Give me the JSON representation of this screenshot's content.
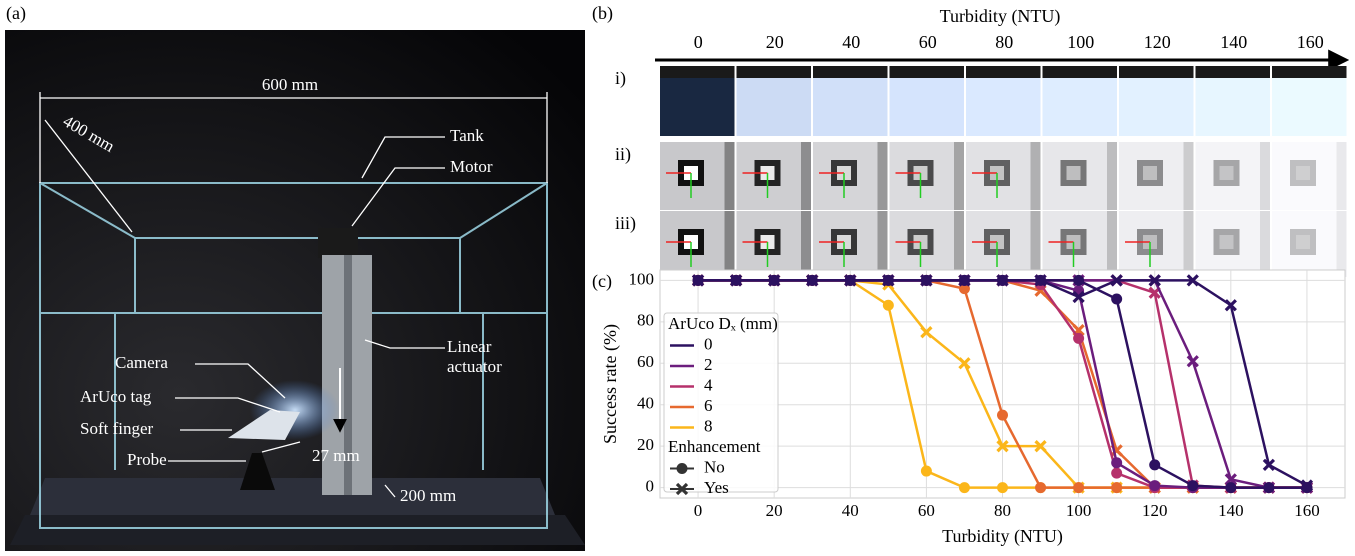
{
  "photo": {
    "label": "(a)",
    "annotations": [
      "600 mm",
      "400 mm",
      "Tank",
      "Motor",
      "Linear",
      "actuator",
      "Camera",
      "ArUco tag",
      "Soft finger",
      "Probe",
      "27 mm",
      "200 mm"
    ]
  },
  "images": {
    "label": "(b)",
    "axis_title": "Turbidity (NTU)",
    "ticks": [
      0,
      20,
      40,
      60,
      80,
      100,
      120,
      140,
      160
    ],
    "rows": [
      "i)",
      "ii)",
      "iii)"
    ]
  },
  "chart_data": {
    "type": "line",
    "label": "(c)",
    "x_label": "Turbidity (NTU)",
    "y_label": "Success rate (%)",
    "x": [
      0,
      10,
      20,
      30,
      40,
      50,
      60,
      70,
      80,
      90,
      100,
      110,
      120,
      130,
      140,
      150,
      160
    ],
    "xlim": [
      -10,
      170
    ],
    "xticks": [
      0,
      20,
      40,
      60,
      80,
      100,
      120,
      140,
      160
    ],
    "ylim": [
      -5,
      105
    ],
    "yticks": [
      0,
      20,
      40,
      60,
      80,
      100
    ],
    "grid": true,
    "hue_legend": {
      "title": "ArUco Dₓ (mm)",
      "entries": [
        {
          "name": "0",
          "color": "#2c1160"
        },
        {
          "name": "2",
          "color": "#6b1d7d"
        },
        {
          "name": "4",
          "color": "#b5316b"
        },
        {
          "name": "6",
          "color": "#e6692f"
        },
        {
          "name": "8",
          "color": "#fbb61a"
        }
      ]
    },
    "style_legend": {
      "title": "Enhancement",
      "entries": [
        {
          "name": "No",
          "marker": "circle"
        },
        {
          "name": "Yes",
          "marker": "cross"
        }
      ]
    },
    "legend_position": "center left",
    "series": [
      {
        "color": "#fbb61a",
        "marker": "circle",
        "values": [
          100,
          100,
          100,
          100,
          100,
          88,
          8,
          0,
          0,
          0,
          0,
          0,
          0,
          0,
          0,
          0,
          0
        ]
      },
      {
        "color": "#fbb61a",
        "marker": "cross",
        "values": [
          100,
          100,
          100,
          100,
          100,
          98,
          75,
          60,
          20,
          20,
          0,
          0,
          0,
          0,
          0,
          0,
          0
        ]
      },
      {
        "color": "#e6692f",
        "marker": "circle",
        "values": [
          100,
          100,
          100,
          100,
          100,
          100,
          100,
          96,
          35,
          0,
          0,
          0,
          0,
          0,
          0,
          0,
          0
        ]
      },
      {
        "color": "#e6692f",
        "marker": "cross",
        "values": [
          100,
          100,
          100,
          100,
          100,
          100,
          100,
          100,
          100,
          95,
          76,
          18,
          0,
          0,
          0,
          0,
          0
        ]
      },
      {
        "color": "#b5316b",
        "marker": "circle",
        "values": [
          100,
          100,
          100,
          100,
          100,
          100,
          100,
          100,
          100,
          98,
          72,
          7,
          0,
          0,
          0,
          0,
          0
        ]
      },
      {
        "color": "#b5316b",
        "marker": "cross",
        "values": [
          100,
          100,
          100,
          100,
          100,
          100,
          100,
          100,
          100,
          100,
          100,
          100,
          94,
          1,
          0,
          0,
          0
        ]
      },
      {
        "color": "#6b1d7d",
        "marker": "circle",
        "values": [
          100,
          100,
          100,
          100,
          100,
          100,
          100,
          100,
          100,
          100,
          95,
          12,
          1,
          0,
          0,
          0,
          0
        ]
      },
      {
        "color": "#6b1d7d",
        "marker": "cross",
        "values": [
          100,
          100,
          100,
          100,
          100,
          100,
          100,
          100,
          100,
          100,
          100,
          100,
          100,
          61,
          4,
          0,
          0
        ]
      },
      {
        "color": "#2c1160",
        "marker": "circle",
        "values": [
          100,
          100,
          100,
          100,
          100,
          100,
          100,
          100,
          100,
          100,
          100,
          91,
          11,
          1,
          0,
          0,
          0
        ]
      },
      {
        "color": "#2c1160",
        "marker": "cross",
        "values": [
          100,
          100,
          100,
          100,
          100,
          100,
          100,
          100,
          100,
          100,
          92,
          100,
          100,
          100,
          88,
          11,
          1
        ]
      }
    ]
  }
}
